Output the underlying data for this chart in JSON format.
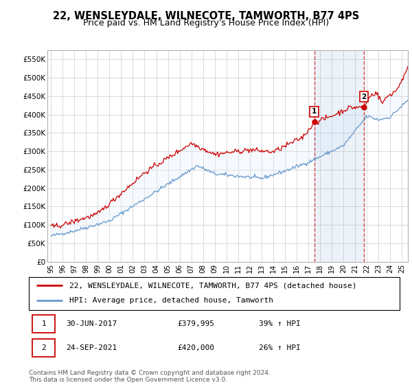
{
  "title": "22, WENSLEYDALE, WILNECOTE, TAMWORTH, B77 4PS",
  "subtitle": "Price paid vs. HM Land Registry's House Price Index (HPI)",
  "ylabel_ticks": [
    "£0",
    "£50K",
    "£100K",
    "£150K",
    "£200K",
    "£250K",
    "£300K",
    "£350K",
    "£400K",
    "£450K",
    "£500K",
    "£550K"
  ],
  "ytick_vals": [
    0,
    50000,
    100000,
    150000,
    200000,
    250000,
    300000,
    350000,
    400000,
    450000,
    500000,
    550000
  ],
  "ylim": [
    0,
    575000
  ],
  "xlim_start": 1994.7,
  "xlim_end": 2025.5,
  "xtick_labels": [
    "95",
    "96",
    "97",
    "98",
    "99",
    "00",
    "01",
    "02",
    "03",
    "04",
    "05",
    "06",
    "07",
    "08",
    "09",
    "10",
    "11",
    "12",
    "13",
    "14",
    "15",
    "16",
    "17",
    "18",
    "19",
    "20",
    "21",
    "22",
    "23",
    "24",
    "25"
  ],
  "xtick_vals": [
    1995,
    1996,
    1997,
    1998,
    1999,
    2000,
    2001,
    2002,
    2003,
    2004,
    2005,
    2006,
    2007,
    2008,
    2009,
    2010,
    2011,
    2012,
    2013,
    2014,
    2015,
    2016,
    2017,
    2018,
    2019,
    2020,
    2021,
    2022,
    2023,
    2024,
    2025
  ],
  "legend_line1": "22, WENSLEYDALE, WILNECOTE, TAMWORTH, B77 4PS (detached house)",
  "legend_line2": "HPI: Average price, detached house, Tamworth",
  "line1_color": "#cc0000",
  "line2_color": "#6699cc",
  "fill_color": "#ddeeff",
  "marker1_date": 2017.5,
  "marker1_value": 379995,
  "marker1_label": "1",
  "marker2_date": 2021.73,
  "marker2_value": 420000,
  "marker2_label": "2",
  "note1_label": "1",
  "note1_date": "30-JUN-2017",
  "note1_price": "£379,995",
  "note1_hpi": "39% ↑ HPI",
  "note2_label": "2",
  "note2_date": "24-SEP-2021",
  "note2_price": "£420,000",
  "note2_hpi": "26% ↑ HPI",
  "footer": "Contains HM Land Registry data © Crown copyright and database right 2024.\nThis data is licensed under the Open Government Licence v3.0.",
  "background_color": "#ffffff",
  "grid_color": "#cccccc",
  "title_fontsize": 10.5,
  "subtitle_fontsize": 9,
  "tick_fontsize": 7.5,
  "legend_fontsize": 8,
  "note_fontsize": 8,
  "footer_fontsize": 6.5
}
